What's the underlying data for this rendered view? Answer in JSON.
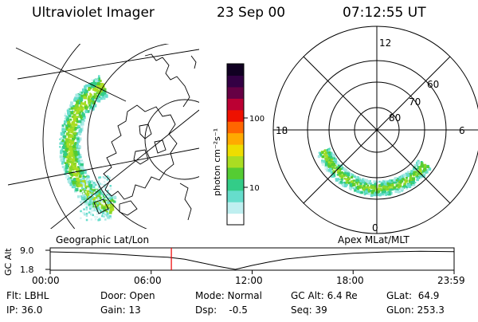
{
  "header": {
    "instrument": "Ultraviolet Imager",
    "date": "23 Sep 00",
    "time": "07:12:55 UT"
  },
  "chart_data": [
    {
      "type": "heatmap",
      "title": "Geographic Lat/Lon",
      "projection": "geographic",
      "description_labels": [
        "Geographic Lat/Lon"
      ]
    },
    {
      "type": "heatmap",
      "title": "Apex MLat/MLT",
      "projection": "polar",
      "radial_labels": [
        "80",
        "70",
        "60"
      ],
      "mlt_labels": [
        "12",
        "18",
        "6",
        "0"
      ]
    },
    {
      "type": "colorbar",
      "scale": "log",
      "ylabel": "photon cm⁻²s⁻¹",
      "ticks": [
        "100",
        "10"
      ],
      "colors_bottom_to_top": [
        "#ffffff",
        "#bfeff0",
        "#66ddcc",
        "#33cc88",
        "#55cc33",
        "#aadd22",
        "#eedd00",
        "#ffaa00",
        "#ff6600",
        "#ee1100",
        "#bb0033",
        "#660044",
        "#330044",
        "#110022"
      ]
    },
    {
      "type": "line",
      "ylabel": "GC Alt",
      "yticks": [
        "9.0",
        "1.8"
      ],
      "ylim": [
        1.8,
        9.0
      ],
      "xticks": [
        "00:00",
        "06:00",
        "12:00",
        "18:00",
        "23:59"
      ],
      "x_hours": [
        0,
        2,
        4,
        6,
        7,
        8,
        9,
        10,
        11,
        12,
        13,
        14,
        16,
        18,
        20,
        22,
        24
      ],
      "y_values": [
        8.4,
        8.1,
        7.5,
        6.7,
        6.4,
        5.6,
        4.3,
        2.9,
        1.8,
        3.3,
        4.6,
        5.7,
        7.0,
        7.9,
        8.4,
        8.6,
        8.5
      ],
      "marker_hour": 7.2
    }
  ],
  "footer": {
    "col1": [
      "Flt: LBHL",
      "IP: 36.0"
    ],
    "col2": [
      "Door: Open",
      "Gain: 13"
    ],
    "col3": [
      "Mode: Normal",
      "Dsp:    -0.5"
    ],
    "col4": [
      "GC Alt: 6.4 Re",
      "Seq: 39"
    ],
    "col5": [
      "GLat:  64.9",
      "GLon: 253.3"
    ]
  }
}
